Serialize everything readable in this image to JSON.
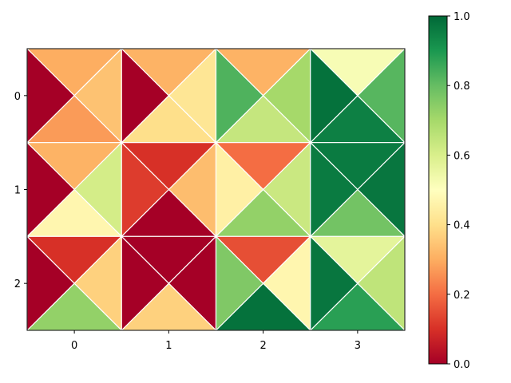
{
  "chart_data": {
    "type": "heatmap",
    "variant": "tripcolor-quadrants",
    "colormap": "RdYlGn",
    "x_ticks": [
      "0",
      "1",
      "2",
      "3"
    ],
    "y_ticks": [
      "0",
      "1",
      "2"
    ],
    "grid": false,
    "cells": [
      {
        "row": 0,
        "col": 0,
        "top": 0.3,
        "right": 0.34,
        "bottom": 0.27,
        "left": 0.0
      },
      {
        "row": 0,
        "col": 1,
        "top": 0.31,
        "right": 0.42,
        "bottom": 0.4,
        "left": 0.0
      },
      {
        "row": 0,
        "col": 2,
        "top": 0.31,
        "right": 0.7,
        "bottom": 0.64,
        "left": 0.83
      },
      {
        "row": 0,
        "col": 3,
        "top": 0.52,
        "right": 0.82,
        "bottom": 0.95,
        "left": 0.98
      },
      {
        "row": 1,
        "col": 0,
        "top": 0.31,
        "right": 0.61,
        "bottom": 0.47,
        "left": 0.0
      },
      {
        "row": 1,
        "col": 1,
        "top": 0.1,
        "right": 0.33,
        "bottom": 0.0,
        "left": 0.12
      },
      {
        "row": 1,
        "col": 2,
        "top": 0.2,
        "right": 0.63,
        "bottom": 0.73,
        "left": 0.45
      },
      {
        "row": 1,
        "col": 3,
        "top": 0.96,
        "right": 0.97,
        "bottom": 0.78,
        "left": 0.96
      },
      {
        "row": 2,
        "col": 0,
        "top": 0.1,
        "right": 0.37,
        "bottom": 0.73,
        "left": 0.0
      },
      {
        "row": 2,
        "col": 1,
        "top": 0.0,
        "right": 0.0,
        "bottom": 0.37,
        "left": 0.0
      },
      {
        "row": 2,
        "col": 2,
        "top": 0.15,
        "right": 0.47,
        "bottom": 0.98,
        "left": 0.76
      },
      {
        "row": 2,
        "col": 3,
        "top": 0.57,
        "right": 0.65,
        "bottom": 0.88,
        "left": 0.97
      }
    ],
    "colorbar": {
      "range": [
        0.0,
        1.0
      ],
      "ticks": [
        "0.0",
        "0.2",
        "0.4",
        "0.6",
        "0.8",
        "1.0"
      ],
      "placement": "right"
    }
  }
}
